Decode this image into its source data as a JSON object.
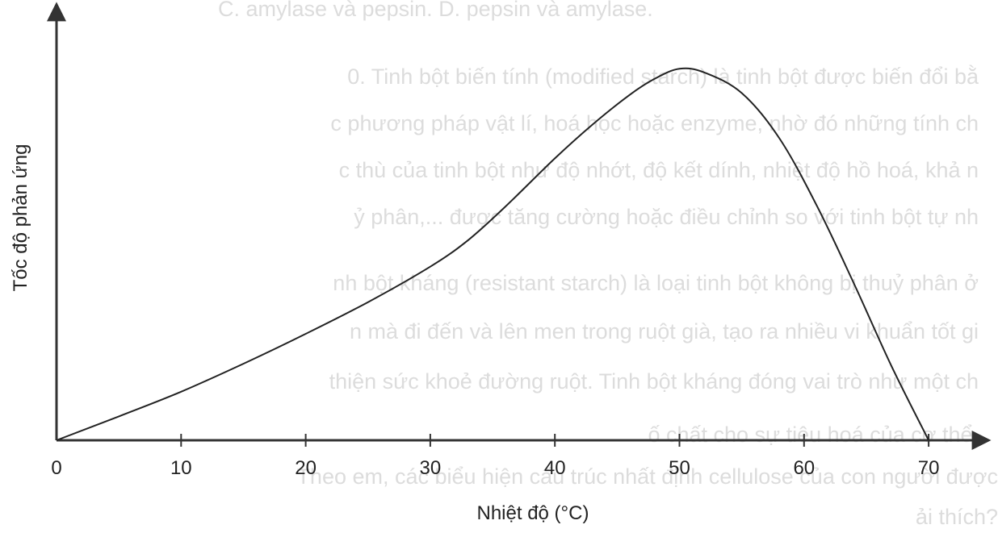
{
  "background_text": [
    "C. amylase và pepsin.                    D. pepsin và amylase.",
    "0. Tinh bột biến tính (modified starch) là tinh bột được biến đổi bằ",
    "c phương pháp vật lí, hoá học hoặc enzyme, nhờ đó những tính ch",
    "c thù của tinh bột như độ nhớt, độ kết dính, nhiệt độ hồ hoá, khả n",
    "ỷ phân,... được tăng cường hoặc điều chỉnh so với tinh bột tự nh",
    "nh bột kháng (resistant starch) là loại tinh bột không bị thuỷ phân ở",
    "n mà đi đến và lên men trong ruột già, tạo ra nhiều vi khuẩn tốt gi",
    "thiện sức khoẻ đường ruột. Tinh bột kháng đóng vai trò như một ch",
    "ố chất cho sự tiêu hoá của cơ thể.",
    "Theo em, các biểu hiện cấu trúc nhất định cellulose của con người được",
    "ải thích?"
  ],
  "colors": {
    "axis": "#333333",
    "curve": "#222222",
    "text": "#222222",
    "background_text": "#dcdcdc"
  },
  "chart_data": {
    "type": "line",
    "title": "",
    "xlabel": "Nhiệt độ (°C)",
    "ylabel": "Tốc độ phản ứng",
    "x_ticks": [
      0,
      10,
      20,
      30,
      40,
      50,
      60,
      70
    ],
    "x_tick_labels": [
      "0",
      "10",
      "20",
      "30",
      "40",
      "50",
      "60",
      "70"
    ],
    "xlim": [
      0,
      77
    ],
    "ylim": [
      0,
      1.1
    ],
    "y_ticks_shown": false,
    "grid": false,
    "series": [
      {
        "name": "",
        "x": [
          0,
          5,
          10,
          15,
          20,
          25,
          30,
          33,
          36,
          40,
          43,
          46,
          48,
          50,
          52,
          55,
          58,
          61,
          64,
          67,
          70
        ],
        "y": [
          0,
          0.064,
          0.13,
          0.205,
          0.285,
          0.37,
          0.465,
          0.535,
          0.625,
          0.755,
          0.845,
          0.925,
          0.968,
          0.995,
          0.985,
          0.93,
          0.81,
          0.63,
          0.42,
          0.2,
          0
        ]
      }
    ]
  }
}
